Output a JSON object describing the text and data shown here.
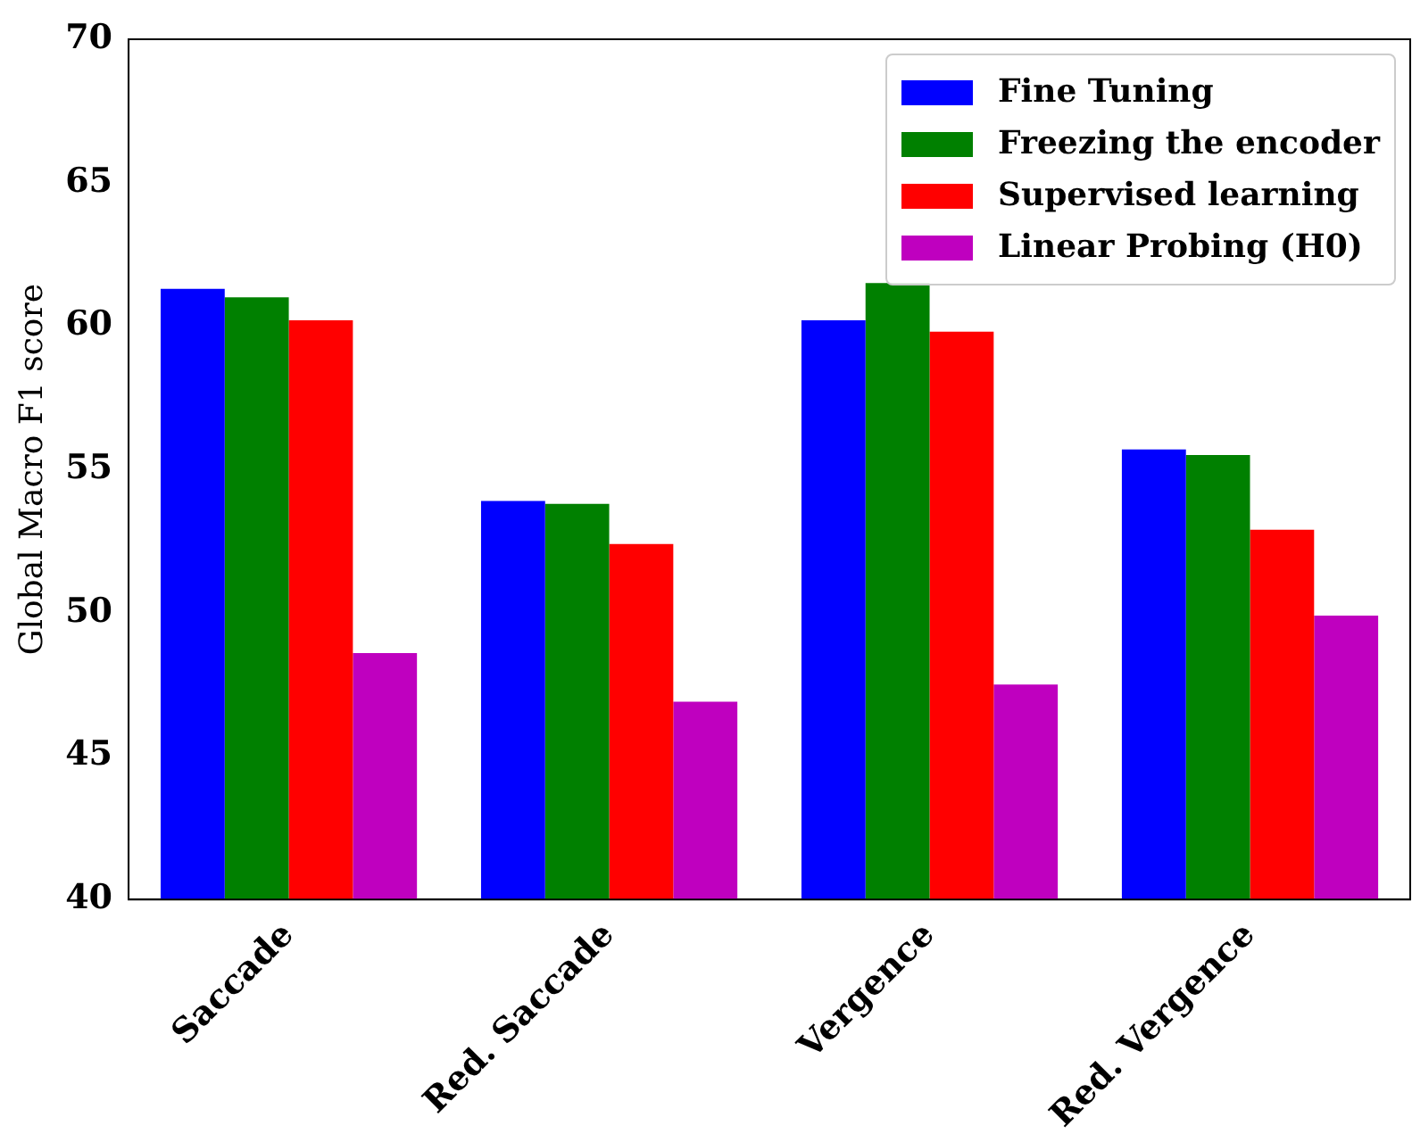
{
  "chart_data": {
    "type": "bar",
    "ylabel": "Global Macro F1 score",
    "categories": [
      "Saccade",
      "Red. Saccade",
      "Vergence",
      "Red. Vergence"
    ],
    "series": [
      {
        "name": "Fine Tuning",
        "color": "#0000ff",
        "values": [
          61.3,
          53.9,
          60.2,
          55.7
        ]
      },
      {
        "name": "Freezing the encoder",
        "color": "#008000",
        "values": [
          61.0,
          53.8,
          61.5,
          55.5
        ]
      },
      {
        "name": "Supervised learning",
        "color": "#ff0000",
        "values": [
          60.2,
          52.4,
          59.8,
          52.9
        ]
      },
      {
        "name": "Linear Probing (H0)",
        "color": "#bf00bf",
        "values": [
          48.6,
          46.9,
          47.5,
          49.9
        ]
      }
    ],
    "ylim": [
      40,
      70
    ],
    "yticks": [
      40,
      45,
      50,
      55,
      60,
      65,
      70
    ],
    "grid": false,
    "legend": "top right"
  }
}
